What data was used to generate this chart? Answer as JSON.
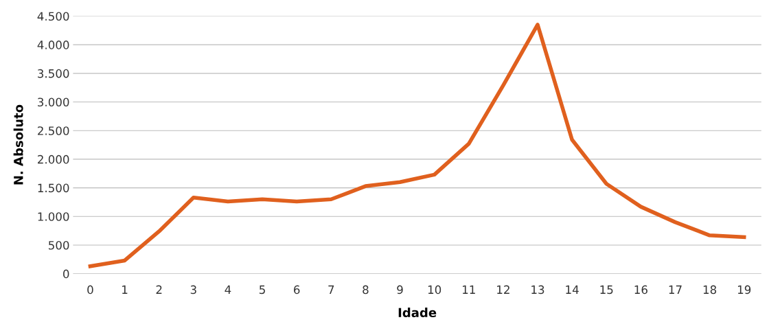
{
  "chart_data": {
    "type": "line",
    "xlabel": "Idade",
    "ylabel": "N. Absoluto",
    "categories": [
      "0",
      "1",
      "2",
      "3",
      "4",
      "5",
      "6",
      "7",
      "8",
      "9",
      "10",
      "11",
      "12",
      "13",
      "14",
      "15",
      "16",
      "17",
      "18",
      "19"
    ],
    "series": [
      {
        "color": "#e0601e",
        "values": [
          130,
          230,
          740,
          1330,
          1260,
          1300,
          1260,
          1300,
          1530,
          1600,
          1730,
          2270,
          3290,
          4350,
          2340,
          1570,
          1170,
          900,
          670,
          640
        ]
      }
    ],
    "ylim": [
      0,
      4500
    ],
    "yticks": [
      0,
      500,
      {
        "value": 1000,
        "label": "1.000"
      },
      {
        "value": 1500,
        "label": "1.500"
      },
      {
        "value": 2000,
        "label": "2.000"
      },
      {
        "value": 2500,
        "label": "2.500"
      },
      {
        "value": 3000,
        "label": "3.000"
      },
      {
        "value": 3500,
        "label": "3.500"
      },
      {
        "value": 4000,
        "label": "4.000"
      },
      {
        "value": 4500,
        "label": "4.500"
      }
    ],
    "grid": "y",
    "legend": false,
    "marker": "none",
    "line_style": "solid"
  }
}
